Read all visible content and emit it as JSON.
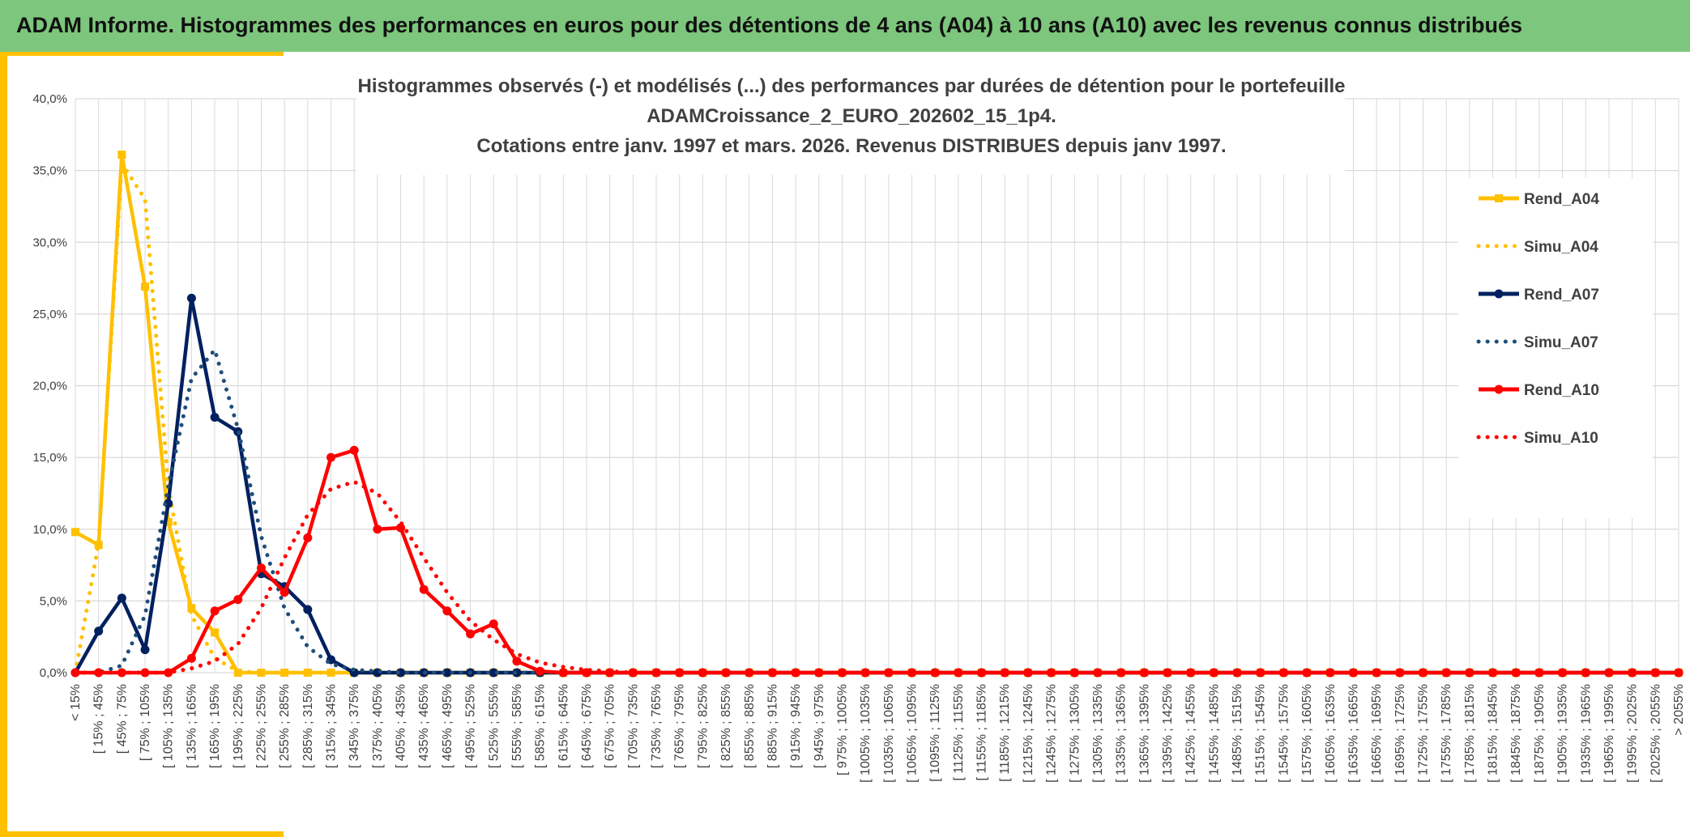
{
  "header": {
    "title": "ADAM Informe. Histogrammes des performances en euros pour des détentions de 4 ans (A04) à 10 ans (A10) avec les revenus connus distribués"
  },
  "chart_data": {
    "type": "line",
    "title": [
      "Histogrammes observés (-) et modélisés (...) des performances par durées de détention pour le portefeuille",
      "ADAMCroissance_2_EURO_202602_15_1p4.",
      "Cotations entre janv. 1997 et mars. 2026. Revenus DISTRIBUES depuis janv 1997."
    ],
    "categories": [
      "< 15%",
      "[ 15% ; 45%",
      "[ 45% ; 75%",
      "[ 75% ; 105%",
      "[ 105% ; 135%",
      "[ 135% ; 165%",
      "[ 165% ; 195%",
      "[ 195% ; 225%",
      "[ 225% ; 255%",
      "[ 255% ; 285%",
      "[ 285% ; 315%",
      "[ 315% ; 345%",
      "[ 345% ; 375%",
      "[ 375% ; 405%",
      "[ 405% ; 435%",
      "[ 435% ; 465%",
      "[ 465% ; 495%",
      "[ 495% ; 525%",
      "[ 525% ; 555%",
      "[ 555% ; 585%",
      "[ 585% ; 615%",
      "[ 615% ; 645%",
      "[ 645% ; 675%",
      "[ 675% ; 705%",
      "[ 705% ; 735%",
      "[ 735% ; 765%",
      "[ 765% ; 795%",
      "[ 795% ; 825%",
      "[ 825% ; 855%",
      "[ 855% ; 885%",
      "[ 885% ; 915%",
      "[ 915% ; 945%",
      "[ 945% ; 975%",
      "[ 975% ; 1005%",
      "[ 1005% ; 1035%",
      "[ 1035% ; 1065%",
      "[ 1065% ; 1095%",
      "[ 1095% ; 1125%",
      "[ 1125% ; 1155%",
      "[ 1155% ; 1185%",
      "[ 1185% ; 1215%",
      "[ 1215% ; 1245%",
      "[ 1245% ; 1275%",
      "[ 1275% ; 1305%",
      "[ 1305% ; 1335%",
      "[ 1335% ; 1365%",
      "[ 1365% ; 1395%",
      "[ 1395% ; 1425%",
      "[ 1425% ; 1455%",
      "[ 1455% ; 1485%",
      "[ 1485% ; 1515%",
      "[ 1515% ; 1545%",
      "[ 1545% ; 1575%",
      "[ 1575% ; 1605%",
      "[ 1605% ; 1635%",
      "[ 1635% ; 1665%",
      "[ 1665% ; 1695%",
      "[ 1695% ; 1725%",
      "[ 1725% ; 1755%",
      "[ 1755% ; 1785%",
      "[ 1785% ; 1815%",
      "[ 1815% ; 1845%",
      "[ 1845% ; 1875%",
      "[ 1875% ; 1905%",
      "[ 1905% ; 1935%",
      "[ 1935% ; 1965%",
      "[ 1965% ; 1995%",
      "[ 1995% ; 2025%",
      "[ 2025% ; 2055%",
      "> 2055%"
    ],
    "series": [
      {
        "name": "Rend_A04",
        "color": "#ffc000",
        "marker": "square",
        "dash": false,
        "values": [
          9.8,
          8.9,
          36.1,
          26.9,
          10.5,
          4.5,
          2.8,
          0,
          0,
          0,
          0,
          0,
          0,
          0,
          0,
          0,
          0,
          0,
          0,
          0,
          0,
          0,
          0,
          0,
          0,
          0,
          0,
          0,
          0,
          0,
          0,
          0,
          0,
          0,
          0,
          0,
          0,
          0,
          0,
          0,
          0,
          0,
          0,
          0,
          0,
          0,
          0,
          0,
          0,
          0,
          0,
          0,
          0,
          0,
          0,
          0,
          0,
          0,
          0,
          0,
          0,
          0,
          0,
          0,
          0,
          0,
          0,
          0,
          0,
          0
        ]
      },
      {
        "name": "Simu_A04",
        "color": "#ffc000",
        "marker": "none",
        "dash": true,
        "values": [
          0,
          9,
          35.5,
          33,
          13,
          4,
          1,
          0.1,
          0,
          0,
          0,
          0,
          0,
          0,
          0,
          0,
          0,
          0,
          0,
          0,
          0,
          0,
          0,
          0,
          0,
          0,
          0,
          0,
          0,
          0,
          0,
          0,
          0,
          0,
          0,
          0,
          0,
          0,
          0,
          0,
          0,
          0,
          0,
          0,
          0,
          0,
          0,
          0,
          0,
          0,
          0,
          0,
          0,
          0,
          0,
          0,
          0,
          0,
          0,
          0,
          0,
          0,
          0,
          0,
          0,
          0,
          0,
          0,
          0,
          0
        ]
      },
      {
        "name": "Rend_A07",
        "color": "#002060",
        "marker": "circle",
        "dash": false,
        "values": [
          0,
          2.9,
          5.2,
          1.6,
          11.8,
          26.1,
          17.8,
          16.8,
          6.9,
          6,
          4.4,
          0.9,
          0,
          0,
          0,
          0,
          0,
          0,
          0,
          0,
          0,
          0,
          0,
          0,
          0,
          0,
          0,
          0,
          0,
          0,
          0,
          0,
          0,
          0,
          0,
          0,
          0,
          0,
          0,
          0,
          0,
          0,
          0,
          0,
          0,
          0,
          0,
          0,
          0,
          0,
          0,
          0,
          0,
          0,
          0,
          0,
          0,
          0,
          0,
          0,
          0,
          0,
          0,
          0,
          0,
          0,
          0,
          0,
          0,
          0
        ]
      },
      {
        "name": "Simu_A07",
        "color": "#1f4e79",
        "marker": "none",
        "dash": true,
        "values": [
          0,
          0,
          0.5,
          4,
          13,
          20.5,
          22.5,
          17,
          9.5,
          4.5,
          1.8,
          0.6,
          0.2,
          0.1,
          0,
          0,
          0,
          0,
          0,
          0,
          0,
          0,
          0,
          0,
          0,
          0,
          0,
          0,
          0,
          0,
          0,
          0,
          0,
          0,
          0,
          0,
          0,
          0,
          0,
          0,
          0,
          0,
          0,
          0,
          0,
          0,
          0,
          0,
          0,
          0,
          0,
          0,
          0,
          0,
          0,
          0,
          0,
          0,
          0,
          0,
          0,
          0,
          0,
          0,
          0,
          0,
          0,
          0,
          0,
          0
        ]
      },
      {
        "name": "Rend_A10",
        "color": "#ff0000",
        "marker": "circle",
        "dash": false,
        "values": [
          0,
          0,
          0,
          0,
          0,
          1,
          4.3,
          5.1,
          7.3,
          5.6,
          9.4,
          15,
          15.5,
          10,
          10.1,
          5.8,
          4.3,
          2.7,
          3.4,
          0.8,
          0.1,
          0,
          0,
          0,
          0,
          0,
          0,
          0,
          0,
          0,
          0,
          0,
          0,
          0,
          0,
          0,
          0,
          0,
          0,
          0,
          0,
          0,
          0,
          0,
          0,
          0,
          0,
          0,
          0,
          0,
          0,
          0,
          0,
          0,
          0,
          0,
          0,
          0,
          0,
          0,
          0,
          0,
          0,
          0,
          0,
          0,
          0,
          0,
          0,
          0
        ]
      },
      {
        "name": "Simu_A10",
        "color": "#ff0000",
        "marker": "none",
        "dash": true,
        "values": [
          0,
          0,
          0,
          0,
          0,
          0.3,
          0.8,
          2,
          4.5,
          8,
          11,
          12.8,
          13.3,
          12.5,
          10.5,
          8,
          5.6,
          3.6,
          2.3,
          1.3,
          0.7,
          0.4,
          0.2,
          0.1,
          0,
          0,
          0,
          0,
          0,
          0,
          0,
          0,
          0,
          0,
          0,
          0,
          0,
          0,
          0,
          0,
          0,
          0,
          0,
          0,
          0,
          0,
          0,
          0,
          0,
          0,
          0,
          0,
          0,
          0,
          0,
          0,
          0,
          0,
          0,
          0,
          0,
          0,
          0,
          0,
          0,
          0,
          0,
          0,
          0,
          0
        ]
      }
    ],
    "ylim": [
      0,
      40
    ],
    "yticks": [
      {
        "value": 0,
        "label": "0,0%"
      },
      {
        "value": 5,
        "label": "5,0%"
      },
      {
        "value": 10,
        "label": "10,0%"
      },
      {
        "value": 15,
        "label": "15,0%"
      },
      {
        "value": 20,
        "label": "20,0%"
      },
      {
        "value": 25,
        "label": "25,0%"
      },
      {
        "value": 30,
        "label": "30,0%"
      },
      {
        "value": 35,
        "label": "35,0%"
      },
      {
        "value": 40,
        "label": "40,0%"
      }
    ],
    "grid": true,
    "legend": "right"
  }
}
